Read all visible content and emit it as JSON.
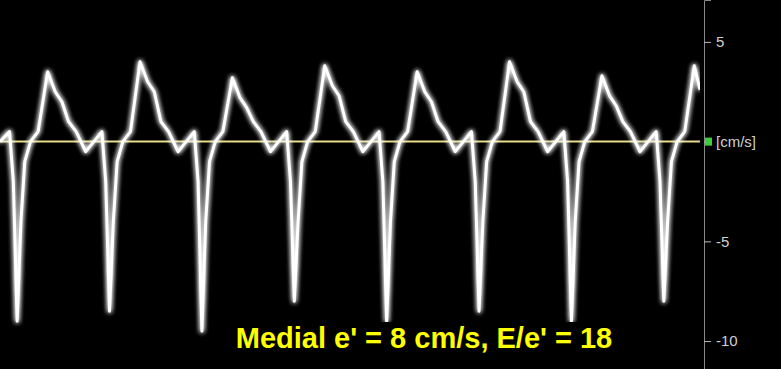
{
  "chart_data": {
    "type": "line",
    "annotations": [
      {
        "text": "Medial e' = 8 cm/s, E/e' = 18"
      }
    ],
    "x": [
      0,
      10,
      14,
      18,
      22,
      26,
      32,
      40,
      50,
      58,
      65,
      72,
      80,
      90,
      107,
      111,
      115,
      119,
      123,
      129,
      137,
      147,
      155,
      162,
      169,
      177,
      187,
      204,
      208,
      212,
      216,
      220,
      226,
      234,
      244,
      252,
      259,
      266,
      274,
      284,
      301,
      305,
      309,
      313,
      317,
      323,
      331,
      341,
      349,
      356,
      363,
      371,
      381,
      398,
      402,
      406,
      410,
      414,
      420,
      428,
      438,
      446,
      453,
      460,
      468,
      478,
      495,
      499,
      503,
      507,
      511,
      517,
      525,
      535,
      543,
      550,
      557,
      565,
      575,
      592,
      596,
      600,
      604,
      608,
      614,
      622,
      632,
      640,
      647,
      654,
      662,
      672,
      689,
      693,
      697,
      701,
      705,
      711,
      719,
      729,
      735
    ],
    "values": [
      0,
      0.5,
      -2,
      -9,
      -4,
      -1,
      0,
      0.5,
      3.5,
      2.5,
      2,
      1,
      0.5,
      -0.5,
      0.5,
      -2,
      -8.5,
      -4,
      -1,
      0,
      0.5,
      4,
      3,
      2.5,
      1,
      0.5,
      -0.5,
      0.5,
      -2,
      -9.5,
      -4,
      -1,
      0,
      0.5,
      3.2,
      2.2,
      1.7,
      1,
      0.5,
      -0.5,
      0.5,
      -2,
      -8,
      -4,
      -1,
      0,
      0.5,
      3.8,
      2.8,
      2.3,
      1,
      0.5,
      -0.5,
      0.5,
      -2,
      -9,
      -4,
      -1,
      0,
      0.5,
      3.5,
      2.5,
      2,
      1,
      0.5,
      -0.5,
      0.5,
      -2,
      -8.5,
      -4,
      -1,
      0,
      0.5,
      4,
      3,
      2.5,
      1,
      0.5,
      -0.5,
      0.5,
      -2,
      -9,
      -4,
      -1,
      0,
      0.5,
      3.3,
      2.3,
      1.8,
      1,
      0.5,
      -0.5,
      0.5,
      -2,
      -8,
      -4,
      -1,
      0,
      0.5,
      3.8,
      2.6
    ],
    "color": "#ffffff",
    "xlim": [
      0,
      735
    ],
    "ylim": [
      -11.4,
      7.1
    ],
    "yticks": [
      5,
      {
        "value": 0,
        "label": "[cm/s]"
      },
      -5,
      -10
    ],
    "tick_labels": "y"
  }
}
